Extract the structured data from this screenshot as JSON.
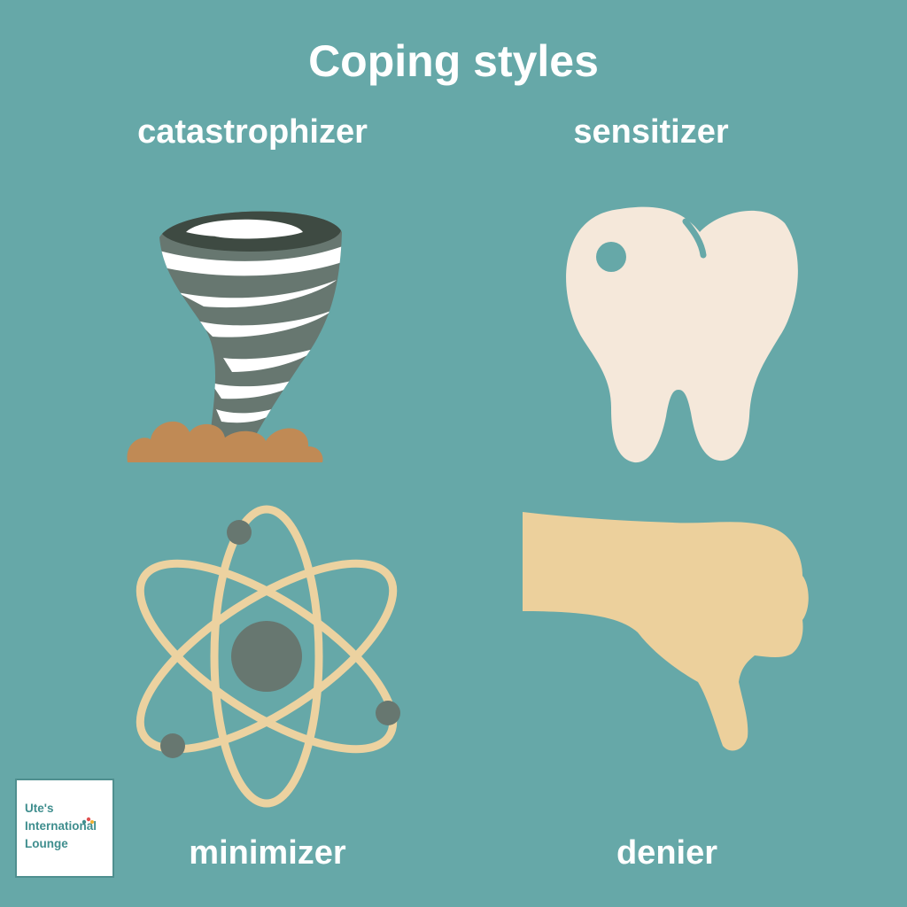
{
  "title": "Coping styles",
  "styles": [
    {
      "label": "catastrophizer",
      "icon": "tornado-icon"
    },
    {
      "label": "sensitizer",
      "icon": "tooth-icon"
    },
    {
      "label": "minimizer",
      "icon": "atom-icon"
    },
    {
      "label": "denier",
      "icon": "thumbs-down-icon"
    }
  ],
  "logo": {
    "line1": "Ute's",
    "line2": "International",
    "line3": "Lounge"
  },
  "colors": {
    "background": "#66a8a8",
    "text": "#ffffff",
    "tornado": "#677770",
    "tornado_dark": "#3e4a42",
    "dirt": "#c08a55",
    "tooth": "#f5e8da",
    "atom_orbit": "#ecd2a0",
    "atom_core": "#677770",
    "hand": "#ecd09c",
    "logo_text": "#3f8e8e"
  }
}
